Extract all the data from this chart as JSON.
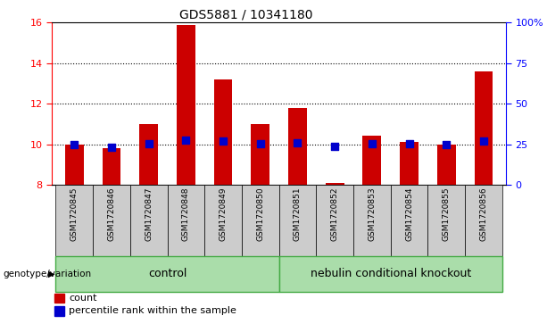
{
  "title": "GDS5881 / 10341180",
  "samples": [
    "GSM1720845",
    "GSM1720846",
    "GSM1720847",
    "GSM1720848",
    "GSM1720849",
    "GSM1720850",
    "GSM1720851",
    "GSM1720852",
    "GSM1720853",
    "GSM1720854",
    "GSM1720855",
    "GSM1720856"
  ],
  "count_values": [
    10.0,
    9.8,
    11.0,
    15.9,
    13.2,
    11.0,
    11.8,
    8.1,
    10.4,
    10.1,
    10.0,
    13.6
  ],
  "count_base": 8.0,
  "percentile_values": [
    25.0,
    23.0,
    25.5,
    27.5,
    27.0,
    25.5,
    26.0,
    23.5,
    25.5,
    25.2,
    25.0,
    27.0
  ],
  "ylim_left": [
    8,
    16
  ],
  "ylim_right": [
    0,
    100
  ],
  "yticks_left": [
    8,
    10,
    12,
    14,
    16
  ],
  "yticks_right": [
    0,
    25,
    50,
    75,
    100
  ],
  "ytick_labels_right": [
    "0",
    "25",
    "50",
    "75",
    "100%"
  ],
  "bar_color": "#cc0000",
  "dot_color": "#0000cc",
  "bar_width": 0.5,
  "dot_size": 28,
  "control_samples": 6,
  "control_label": "control",
  "knockout_label": "nebulin conditional knockout",
  "control_bg": "#aaddaa",
  "knockout_bg": "#aaddaa",
  "group_label": "genotype/variation",
  "xlabel_bg": "#cccccc",
  "legend_count_label": "count",
  "legend_pct_label": "percentile rank within the sample",
  "grid_color": "black",
  "grid_style": "dotted"
}
